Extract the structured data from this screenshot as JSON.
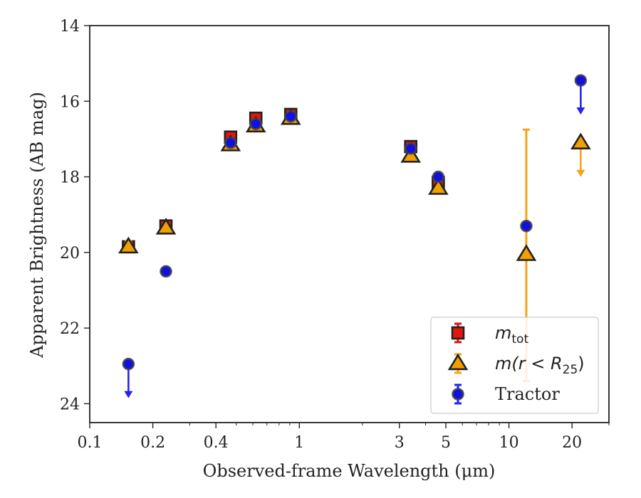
{
  "chart_data": {
    "type": "scatter",
    "title": "",
    "xlabel": "Observed-frame Wavelength (μm)",
    "ylabel": "Apparent Brightness (AB mag)",
    "x_scale": "log",
    "xlim": [
      0.1,
      30
    ],
    "ylim": [
      24.5,
      14
    ],
    "y_inverted": true,
    "x_ticks": [
      0.1,
      0.2,
      0.4,
      1,
      3,
      5,
      10,
      20
    ],
    "x_tick_labels": [
      "0.1",
      "0.2",
      "0.4",
      "1",
      "3",
      "5",
      "10",
      "20"
    ],
    "y_ticks": [
      14,
      16,
      18,
      20,
      22,
      24
    ],
    "y_tick_labels": [
      "14",
      "16",
      "18",
      "20",
      "22",
      "24"
    ],
    "grid": false,
    "legend_placement": "lower-right",
    "series": [
      {
        "legend_main": "m",
        "legend_sub": "tot",
        "marker": "square",
        "color": "#e8140c",
        "edge": "#222222",
        "errcolor": "#d81414",
        "points": [
          {
            "x": 0.153,
            "y": 19.85,
            "err": 0.1
          },
          {
            "x": 0.231,
            "y": 19.3,
            "err": 0.08
          },
          {
            "x": 0.47,
            "y": 16.95,
            "err": 0.06
          },
          {
            "x": 0.62,
            "y": 16.45,
            "err": 0.06
          },
          {
            "x": 0.91,
            "y": 16.35,
            "err": 0.06
          },
          {
            "x": 3.4,
            "y": 17.2,
            "err": 0.05
          },
          {
            "x": 4.6,
            "y": 18.15,
            "err": 0.1
          }
        ]
      },
      {
        "legend_main": "m(r < R",
        "legend_sub": "25",
        "legend_tail": ")",
        "marker": "triangle",
        "color": "#f0a000",
        "edge": "#222222",
        "errcolor": "#f5a31a",
        "points": [
          {
            "x": 0.153,
            "y": 19.85,
            "err": 0.15
          },
          {
            "x": 0.231,
            "y": 19.35,
            "err": 0.1
          },
          {
            "x": 0.47,
            "y": 17.15,
            "err": 0.06
          },
          {
            "x": 0.62,
            "y": 16.65,
            "err": 0.06
          },
          {
            "x": 0.91,
            "y": 16.45,
            "err": 0.06
          },
          {
            "x": 3.4,
            "y": 17.45,
            "err": 0.06
          },
          {
            "x": 4.6,
            "y": 18.3,
            "err": 0.08
          },
          {
            "x": 12.1,
            "y": 20.05,
            "err_low": 3.3,
            "err_high": 3.35
          },
          {
            "x": 22.0,
            "y": 17.1,
            "upper_limit": true
          }
        ]
      },
      {
        "legend_main": "Tractor",
        "marker": "circle",
        "color": "#1010e0",
        "edge": "#444444",
        "errcolor": "#2424f0",
        "points": [
          {
            "x": 0.153,
            "y": 22.95,
            "upper_limit": true
          },
          {
            "x": 0.231,
            "y": 20.5,
            "err": 0.05
          },
          {
            "x": 0.47,
            "y": 17.1,
            "err": 0.05
          },
          {
            "x": 0.62,
            "y": 16.6,
            "err": 0.05
          },
          {
            "x": 0.91,
            "y": 16.4,
            "err": 0.05
          },
          {
            "x": 3.4,
            "y": 17.25,
            "err": 0.05
          },
          {
            "x": 4.6,
            "y": 18.0,
            "err": 0.05
          },
          {
            "x": 12.1,
            "y": 19.3,
            "err": 0.05
          },
          {
            "x": 22.0,
            "y": 15.45,
            "upper_limit": true
          }
        ]
      }
    ]
  }
}
